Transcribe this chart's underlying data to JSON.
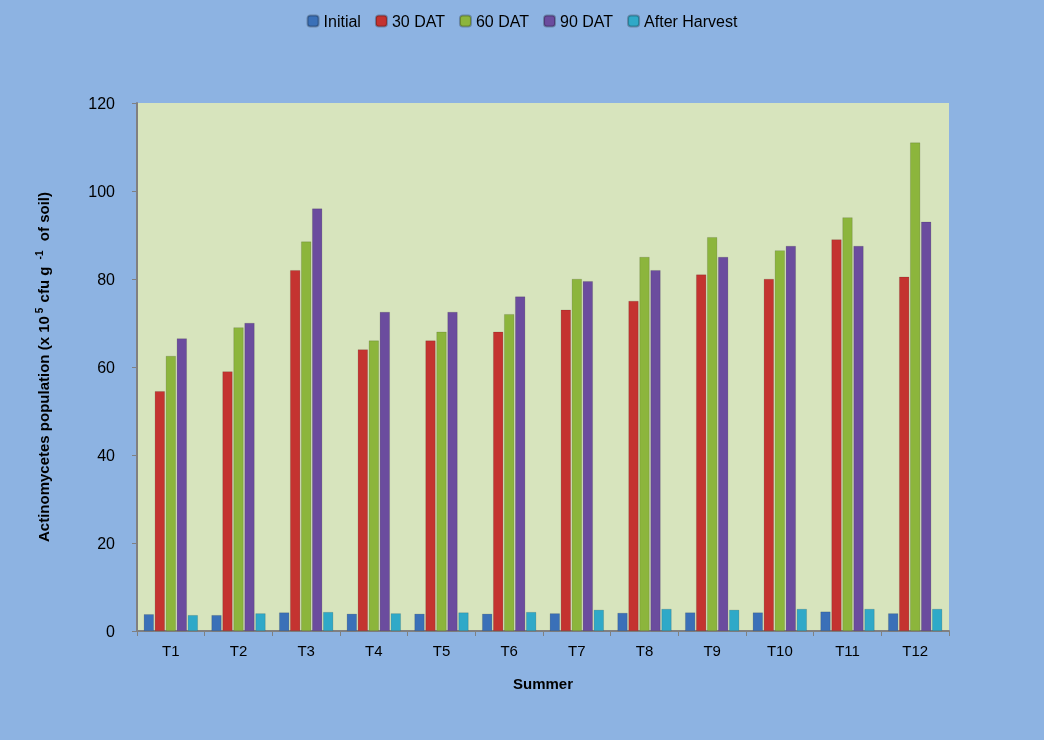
{
  "chart_data": {
    "type": "bar",
    "xlabel": "Summer",
    "ylabel": "Actinomycetes population (x 10$^{5}$ cfu g $^{-1}$  of soil)",
    "categories": [
      "T1",
      "T2",
      "T3",
      "T4",
      "T5",
      "T6",
      "T7",
      "T8",
      "T9",
      "T10",
      "T11",
      "T12"
    ],
    "series": [
      {
        "name": "Initial",
        "color": "#3a70b8",
        "values": [
          3.8,
          3.6,
          4.2,
          3.9,
          3.9,
          3.9,
          4.0,
          4.1,
          4.2,
          4.2,
          4.4,
          4.0
        ]
      },
      {
        "name": "30 DAT",
        "color": "#c43330",
        "values": [
          54.5,
          59,
          82,
          64,
          66,
          68,
          73,
          75,
          81,
          80,
          89,
          80.5
        ]
      },
      {
        "name": "60 DAT",
        "color": "#8cb53c",
        "values": [
          62.5,
          69,
          88.5,
          66,
          68,
          72,
          80,
          85,
          89.5,
          86.5,
          94,
          111
        ]
      },
      {
        "name": "90 DAT",
        "color": "#6b4c9e",
        "values": [
          66.5,
          70,
          96,
          72.5,
          72.5,
          76,
          79.5,
          82,
          85,
          87.5,
          87.5,
          93
        ]
      },
      {
        "name": "After Harvest",
        "color": "#2fa9c8",
        "values": [
          3.6,
          4.0,
          4.3,
          4.0,
          4.2,
          4.3,
          4.8,
          5.0,
          4.8,
          5.0,
          5.0,
          5.0
        ]
      }
    ],
    "ylim": [
      0,
      120
    ],
    "yticks": [
      0,
      20,
      40,
      60,
      80,
      100,
      120
    ],
    "grid": false,
    "legend": "top"
  }
}
